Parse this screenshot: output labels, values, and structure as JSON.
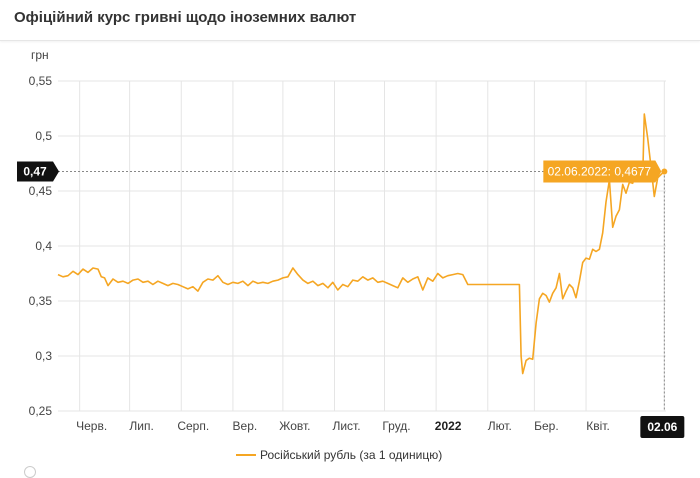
{
  "header": {
    "title": "Офіційний курс гривні щодо іноземних валют"
  },
  "colors": {
    "line": "#f5a623",
    "grid": "#e5e5e5",
    "highlight_box": "#111111",
    "tooltip_bg": "#f5a623"
  },
  "chart_data": {
    "type": "line",
    "title": "Офіційний курс гривні щодо іноземних валют",
    "ylabel": "грн",
    "ylim": [
      0.25,
      0.55
    ],
    "yticks": [
      {
        "value": 0.55,
        "label": "0,55"
      },
      {
        "value": 0.5,
        "label": "0,5"
      },
      {
        "value": 0.45,
        "label": "0,45"
      },
      {
        "value": 0.4,
        "label": "0,4"
      },
      {
        "value": 0.35,
        "label": "0,35"
      },
      {
        "value": 0.3,
        "label": "0,3"
      },
      {
        "value": 0.25,
        "label": "0,25"
      }
    ],
    "xlim": [
      0,
      365
    ],
    "xticks": [
      {
        "x": 13,
        "label": "Черв.",
        "bold": false
      },
      {
        "x": 43,
        "label": "Лип.",
        "bold": false
      },
      {
        "x": 74,
        "label": "Серп.",
        "bold": false
      },
      {
        "x": 105,
        "label": "Вер.",
        "bold": false
      },
      {
        "x": 135,
        "label": "Жовт.",
        "bold": false
      },
      {
        "x": 166,
        "label": "Лист.",
        "bold": false
      },
      {
        "x": 196,
        "label": "Груд.",
        "bold": false
      },
      {
        "x": 227,
        "label": "2022",
        "bold": true
      },
      {
        "x": 258,
        "label": "Лют.",
        "bold": false
      },
      {
        "x": 286,
        "label": "Бер.",
        "bold": false
      },
      {
        "x": 317,
        "label": "Квіт.",
        "bold": false
      }
    ],
    "highlight": {
      "x": 364,
      "y": 0.4677,
      "x_label": "02.06",
      "y_label": "0,47",
      "tooltip": "02.06.2022: 0,4677"
    },
    "series": [
      {
        "name": "Російський рубль (за 1 одиницю)",
        "points": [
          [
            0,
            0.374
          ],
          [
            3,
            0.372
          ],
          [
            6,
            0.373
          ],
          [
            9,
            0.377
          ],
          [
            12,
            0.374
          ],
          [
            15,
            0.379
          ],
          [
            18,
            0.376
          ],
          [
            21,
            0.38
          ],
          [
            24,
            0.379
          ],
          [
            26,
            0.372
          ],
          [
            28,
            0.371
          ],
          [
            30,
            0.364
          ],
          [
            33,
            0.37
          ],
          [
            36,
            0.367
          ],
          [
            39,
            0.368
          ],
          [
            42,
            0.366
          ],
          [
            45,
            0.369
          ],
          [
            48,
            0.37
          ],
          [
            51,
            0.367
          ],
          [
            54,
            0.368
          ],
          [
            57,
            0.365
          ],
          [
            60,
            0.368
          ],
          [
            63,
            0.366
          ],
          [
            66,
            0.364
          ],
          [
            69,
            0.366
          ],
          [
            72,
            0.365
          ],
          [
            75,
            0.363
          ],
          [
            78,
            0.361
          ],
          [
            81,
            0.363
          ],
          [
            84,
            0.359
          ],
          [
            87,
            0.367
          ],
          [
            90,
            0.37
          ],
          [
            93,
            0.369
          ],
          [
            96,
            0.373
          ],
          [
            99,
            0.367
          ],
          [
            102,
            0.365
          ],
          [
            105,
            0.367
          ],
          [
            108,
            0.366
          ],
          [
            111,
            0.368
          ],
          [
            114,
            0.364
          ],
          [
            117,
            0.368
          ],
          [
            120,
            0.366
          ],
          [
            123,
            0.367
          ],
          [
            126,
            0.366
          ],
          [
            129,
            0.368
          ],
          [
            132,
            0.369
          ],
          [
            135,
            0.371
          ],
          [
            138,
            0.372
          ],
          [
            141,
            0.38
          ],
          [
            144,
            0.374
          ],
          [
            147,
            0.369
          ],
          [
            150,
            0.366
          ],
          [
            153,
            0.368
          ],
          [
            156,
            0.364
          ],
          [
            159,
            0.366
          ],
          [
            162,
            0.362
          ],
          [
            165,
            0.367
          ],
          [
            168,
            0.36
          ],
          [
            171,
            0.365
          ],
          [
            174,
            0.363
          ],
          [
            177,
            0.369
          ],
          [
            180,
            0.368
          ],
          [
            183,
            0.372
          ],
          [
            186,
            0.369
          ],
          [
            189,
            0.371
          ],
          [
            192,
            0.367
          ],
          [
            195,
            0.368
          ],
          [
            198,
            0.366
          ],
          [
            201,
            0.364
          ],
          [
            204,
            0.362
          ],
          [
            207,
            0.371
          ],
          [
            210,
            0.367
          ],
          [
            213,
            0.37
          ],
          [
            216,
            0.372
          ],
          [
            219,
            0.36
          ],
          [
            222,
            0.371
          ],
          [
            225,
            0.368
          ],
          [
            228,
            0.375
          ],
          [
            231,
            0.371
          ],
          [
            234,
            0.373
          ],
          [
            237,
            0.374
          ],
          [
            240,
            0.375
          ],
          [
            243,
            0.374
          ],
          [
            246,
            0.365
          ],
          [
            262,
            0.365
          ],
          [
            270,
            0.365
          ],
          [
            277,
            0.365
          ],
          [
            278,
            0.3
          ],
          [
            279,
            0.284
          ],
          [
            281,
            0.296
          ],
          [
            283,
            0.298
          ],
          [
            285,
            0.297
          ],
          [
            287,
            0.33
          ],
          [
            289,
            0.352
          ],
          [
            291,
            0.357
          ],
          [
            293,
            0.355
          ],
          [
            295,
            0.349
          ],
          [
            297,
            0.357
          ],
          [
            299,
            0.362
          ],
          [
            301,
            0.375
          ],
          [
            303,
            0.352
          ],
          [
            305,
            0.359
          ],
          [
            307,
            0.365
          ],
          [
            309,
            0.362
          ],
          [
            311,
            0.353
          ],
          [
            313,
            0.368
          ],
          [
            315,
            0.385
          ],
          [
            317,
            0.389
          ],
          [
            319,
            0.388
          ],
          [
            321,
            0.397
          ],
          [
            323,
            0.395
          ],
          [
            325,
            0.397
          ],
          [
            327,
            0.412
          ],
          [
            329,
            0.44
          ],
          [
            331,
            0.46
          ],
          [
            333,
            0.417
          ],
          [
            335,
            0.427
          ],
          [
            337,
            0.433
          ],
          [
            339,
            0.456
          ],
          [
            341,
            0.448
          ],
          [
            343,
            0.458
          ],
          [
            345,
            0.457
          ],
          [
            347,
            0.468
          ],
          [
            349,
            0.477
          ],
          [
            351,
            0.462
          ],
          [
            352,
            0.52
          ],
          [
            354,
            0.498
          ],
          [
            356,
            0.472
          ],
          [
            358,
            0.445
          ],
          [
            360,
            0.462
          ],
          [
            362,
            0.465
          ],
          [
            364,
            0.4677
          ]
        ]
      }
    ]
  }
}
